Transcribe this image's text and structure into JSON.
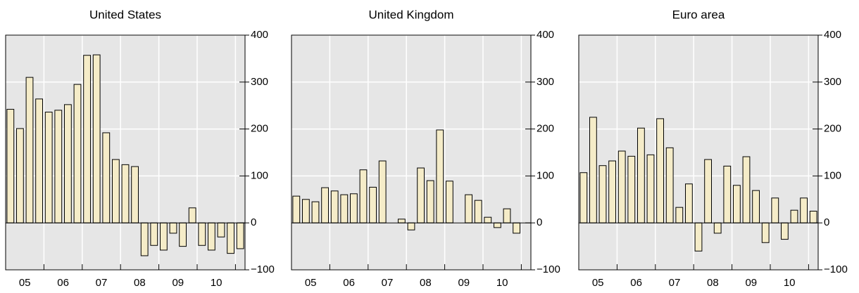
{
  "chart_data": [
    {
      "type": "bar",
      "title": "United States",
      "color": "#f5ecc8",
      "x": [
        2005.125,
        2005.375,
        2005.625,
        2005.875,
        2006.125,
        2006.375,
        2006.625,
        2006.875,
        2007.125,
        2007.375,
        2007.625,
        2007.875,
        2008.125,
        2008.375,
        2008.625,
        2008.875,
        2009.125,
        2009.375,
        2009.625,
        2009.875,
        2010.125,
        2010.375,
        2010.625,
        2010.875,
        2011.125
      ],
      "values": [
        242,
        201,
        310,
        264,
        236,
        240,
        252,
        295,
        357,
        358,
        192,
        135,
        124,
        120,
        -70,
        -48,
        -58,
        -22,
        -50,
        32,
        -48,
        -58,
        -30,
        -65,
        -55
      ],
      "xlim": [
        2005,
        2011.25
      ],
      "xticks": [
        {
          "value": 2005.5,
          "label": "05"
        },
        {
          "value": 2006.5,
          "label": "06"
        },
        {
          "value": 2007.5,
          "label": "07"
        },
        {
          "value": 2008.5,
          "label": "08"
        },
        {
          "value": 2009.5,
          "label": "09"
        },
        {
          "value": 2010.5,
          "label": "10"
        }
      ],
      "xgrid": [
        2006,
        2007,
        2008,
        2009,
        2010,
        2011
      ],
      "ylim": [
        -100,
        400
      ],
      "yticks": [
        {
          "value": -100,
          "label": "−100"
        },
        0,
        100,
        200,
        300,
        400
      ],
      "grid": true
    },
    {
      "type": "bar",
      "title": "United Kingdom",
      "color": "#f5ecc8",
      "x": [
        2005.125,
        2005.375,
        2005.625,
        2005.875,
        2006.125,
        2006.375,
        2006.625,
        2006.875,
        2007.125,
        2007.375,
        2007.625,
        2007.875,
        2008.125,
        2008.375,
        2008.625,
        2008.875,
        2009.125,
        2009.375,
        2009.625,
        2009.875,
        2010.125,
        2010.375,
        2010.625,
        2010.875,
        2011.125
      ],
      "values": [
        57,
        50,
        45,
        75,
        68,
        60,
        62,
        113,
        76,
        132,
        0,
        8,
        -15,
        117,
        90,
        198,
        89,
        0,
        60,
        48,
        12,
        -10,
        30,
        -22,
        null
      ],
      "xlim": [
        2005,
        2011.25
      ],
      "xticks": [
        {
          "value": 2005.5,
          "label": "05"
        },
        {
          "value": 2006.5,
          "label": "06"
        },
        {
          "value": 2007.5,
          "label": "07"
        },
        {
          "value": 2008.5,
          "label": "08"
        },
        {
          "value": 2009.5,
          "label": "09"
        },
        {
          "value": 2010.5,
          "label": "10"
        }
      ],
      "xgrid": [
        2006,
        2007,
        2008,
        2009,
        2010,
        2011
      ],
      "ylim": [
        -100,
        400
      ],
      "yticks": [
        {
          "value": -100,
          "label": "−100"
        },
        0,
        100,
        200,
        300,
        400
      ],
      "grid": true
    },
    {
      "type": "bar",
      "title": "Euro area",
      "color": "#f5ecc8",
      "x": [
        2005.125,
        2005.375,
        2005.625,
        2005.875,
        2006.125,
        2006.375,
        2006.625,
        2006.875,
        2007.125,
        2007.375,
        2007.625,
        2007.875,
        2008.125,
        2008.375,
        2008.625,
        2008.875,
        2009.125,
        2009.375,
        2009.625,
        2009.875,
        2010.125,
        2010.375,
        2010.625,
        2010.875,
        2011.125
      ],
      "values": [
        107,
        225,
        122,
        132,
        153,
        142,
        202,
        145,
        222,
        160,
        33,
        83,
        -60,
        135,
        -22,
        121,
        80,
        141,
        69,
        -42,
        53,
        -35,
        27,
        53,
        25
      ],
      "xlim": [
        2005,
        2011.25
      ],
      "xticks": [
        {
          "value": 2005.5,
          "label": "05"
        },
        {
          "value": 2006.5,
          "label": "06"
        },
        {
          "value": 2007.5,
          "label": "07"
        },
        {
          "value": 2008.5,
          "label": "08"
        },
        {
          "value": 2009.5,
          "label": "09"
        },
        {
          "value": 2010.5,
          "label": "10"
        }
      ],
      "xgrid": [
        2006,
        2007,
        2008,
        2009,
        2010,
        2011
      ],
      "ylim": [
        -100,
        400
      ],
      "yticks": [
        {
          "value": -100,
          "label": "−100"
        },
        0,
        100,
        200,
        300,
        400
      ],
      "grid": true
    }
  ]
}
